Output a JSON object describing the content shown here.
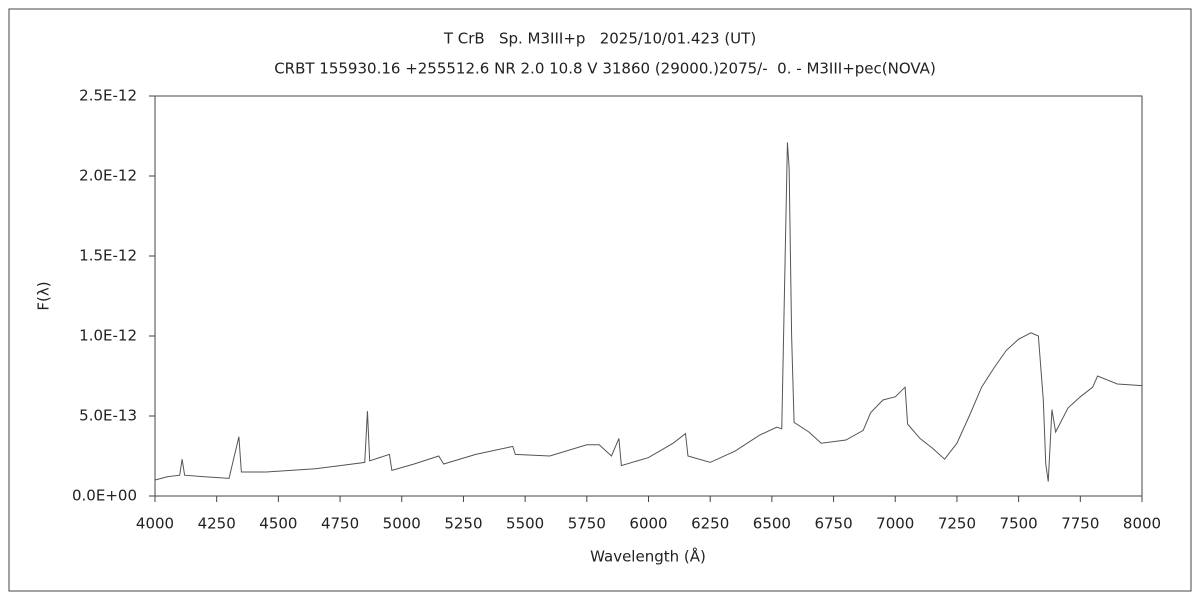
{
  "chart_data": {
    "type": "line",
    "title": "T CrB   Sp. M3III+p   2025/10/01.423 (UT)",
    "subtitle": "CRBT 155930.16 +255512.6 NR 2.0 10.8 V 31860 (29000.)2075/-  0. - M3III+pec(NOVA)",
    "x_label": "Wavelength (Å)",
    "y_label": "F(λ)",
    "color": "#555555",
    "grid": false,
    "xlim": [
      4000,
      8000
    ],
    "xticks": [
      4000,
      4250,
      4500,
      4750,
      5000,
      5250,
      5500,
      5750,
      6000,
      6250,
      6500,
      6750,
      7000,
      7250,
      7500,
      7750,
      8000
    ],
    "ylim": [
      0,
      2.5e-12
    ],
    "yticks": [
      {
        "value": 0,
        "label": "0.0E+00"
      },
      {
        "value": 5e-13,
        "label": "5.0E-13"
      },
      {
        "value": 1e-12,
        "label": "1.0E-12"
      },
      {
        "value": 1.5e-12,
        "label": "1.5E-12"
      },
      {
        "value": 2e-12,
        "label": "2.0E-12"
      },
      {
        "value": 2.5e-12,
        "label": "2.5E-12"
      }
    ],
    "x": [
      4000,
      4050,
      4100,
      4110,
      4120,
      4200,
      4300,
      4340,
      4350,
      4450,
      4550,
      4650,
      4750,
      4850,
      4861,
      4870,
      4950,
      4960,
      5050,
      5150,
      5170,
      5300,
      5450,
      5460,
      5600,
      5750,
      5800,
      5850,
      5880,
      5890,
      6000,
      6100,
      6150,
      6160,
      6250,
      6350,
      6450,
      6520,
      6540,
      6563,
      6570,
      6580,
      6590,
      6650,
      6700,
      6800,
      6870,
      6900,
      6950,
      7000,
      7040,
      7050,
      7100,
      7150,
      7200,
      7250,
      7300,
      7350,
      7400,
      7450,
      7500,
      7550,
      7580,
      7600,
      7610,
      7620,
      7635,
      7650,
      7700,
      7750,
      7800,
      7820,
      7900,
      8000
    ],
    "values": [
      1e-13,
      1.2e-13,
      1.3e-13,
      2.3e-13,
      1.3e-13,
      1.2e-13,
      1.1e-13,
      3.7e-13,
      1.5e-13,
      1.5e-13,
      1.6e-13,
      1.7e-13,
      1.9e-13,
      2.1e-13,
      5.3e-13,
      2.2e-13,
      2.6e-13,
      1.6e-13,
      2e-13,
      2.5e-13,
      2e-13,
      2.6e-13,
      3.1e-13,
      2.6e-13,
      2.5e-13,
      3.2e-13,
      3.2e-13,
      2.5e-13,
      3.6e-13,
      1.9e-13,
      2.4e-13,
      3.3e-13,
      3.9e-13,
      2.5e-13,
      2.1e-13,
      2.8e-13,
      3.8e-13,
      4.3e-13,
      4.2e-13,
      2.21e-12,
      2.05e-12,
      1e-12,
      4.6e-13,
      4e-13,
      3.3e-13,
      3.5e-13,
      4.1e-13,
      5.2e-13,
      6e-13,
      6.2e-13,
      6.8e-13,
      4.5e-13,
      3.6e-13,
      3e-13,
      2.3e-13,
      3.3e-13,
      5e-13,
      6.8e-13,
      8e-13,
      9.1e-13,
      9.8e-13,
      1.02e-12,
      1e-12,
      6e-13,
      2e-13,
      9e-14,
      5.4e-13,
      4e-13,
      5.5e-13,
      6.2e-13,
      6.8e-13,
      7.5e-13,
      7e-13,
      6.9e-13
    ]
  }
}
